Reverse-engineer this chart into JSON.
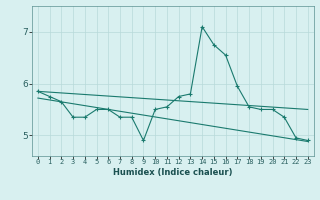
{
  "x": [
    0,
    1,
    2,
    3,
    4,
    5,
    6,
    7,
    8,
    9,
    10,
    11,
    12,
    13,
    14,
    15,
    16,
    17,
    18,
    19,
    20,
    21,
    22,
    23
  ],
  "line1": [
    5.85,
    5.75,
    5.65,
    5.35,
    5.35,
    5.5,
    5.5,
    5.35,
    5.35,
    4.9,
    5.5,
    5.55,
    5.75,
    5.8,
    7.1,
    6.75,
    6.55,
    5.95,
    5.55,
    5.5,
    5.5,
    5.35,
    4.95,
    4.9
  ],
  "trend1_x": [
    0,
    23
  ],
  "trend1_y": [
    5.85,
    5.5
  ],
  "trend2_x": [
    0,
    23
  ],
  "trend2_y": [
    5.72,
    4.88
  ],
  "line_color": "#1a7a6e",
  "bg_color": "#d8f0f0",
  "grid_color": "#b8dada",
  "xlabel": "Humidex (Indice chaleur)",
  "ylim": [
    4.6,
    7.5
  ],
  "xlim": [
    -0.5,
    23.5
  ],
  "yticks": [
    5,
    6,
    7
  ],
  "xticks": [
    0,
    1,
    2,
    3,
    4,
    5,
    6,
    7,
    8,
    9,
    10,
    11,
    12,
    13,
    14,
    15,
    16,
    17,
    18,
    19,
    20,
    21,
    22,
    23
  ],
  "xlabel_fontsize": 6.0,
  "xtick_fontsize": 5.0,
  "ytick_fontsize": 6.5
}
